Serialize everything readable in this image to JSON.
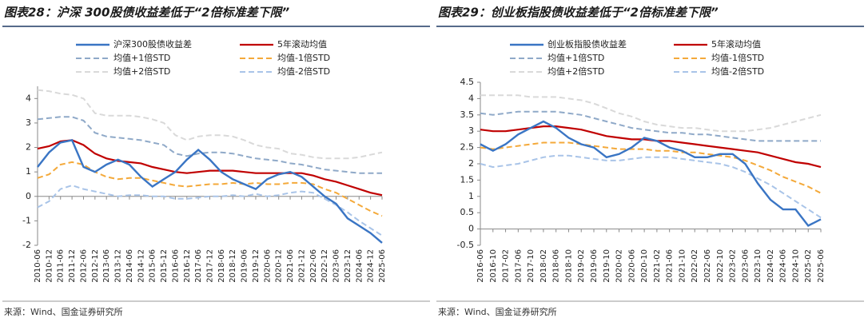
{
  "chart_data": [
    {
      "type": "line",
      "title": "图表28：沪深 300股债收益差低于“2倍标准差下限”",
      "source": "来源：Wind、国金证券研究所",
      "categories": [
        "2010-06",
        "2010-12",
        "2011-06",
        "2011-12",
        "2012-06",
        "2012-12",
        "2013-06",
        "2013-12",
        "2014-06",
        "2014-12",
        "2015-06",
        "2015-12",
        "2016-06",
        "2016-12",
        "2017-06",
        "2017-12",
        "2018-06",
        "2018-12",
        "2019-06",
        "2019-12",
        "2020-06",
        "2020-12",
        "2021-06",
        "2021-12",
        "2022-06",
        "2022-12",
        "2023-06",
        "2023-12",
        "2024-06",
        "2024-12",
        "2025-06"
      ],
      "ylim": [
        -2,
        4.5
      ],
      "yticks": [
        -2,
        -1,
        0,
        1,
        2,
        3,
        4
      ],
      "series": [
        {
          "name": "沪深300股债收益差",
          "color": "#3a75c4",
          "values": [
            1.2,
            1.8,
            2.2,
            2.3,
            1.2,
            1.0,
            1.3,
            1.5,
            1.3,
            0.8,
            0.4,
            0.7,
            1.0,
            1.5,
            1.9,
            1.5,
            1.0,
            0.7,
            0.5,
            0.3,
            0.7,
            0.9,
            1.0,
            0.8,
            0.4,
            0.0,
            -0.3,
            -0.9,
            -1.2,
            -1.5,
            -1.9
          ]
        },
        {
          "name": "5年滚动均值",
          "color": "#c00000",
          "values": [
            1.95,
            2.05,
            2.25,
            2.3,
            2.1,
            1.75,
            1.55,
            1.45,
            1.4,
            1.35,
            1.2,
            1.1,
            1.0,
            0.95,
            1.0,
            1.05,
            1.05,
            1.05,
            1.0,
            0.95,
            0.95,
            0.95,
            0.95,
            0.95,
            0.85,
            0.7,
            0.6,
            0.45,
            0.3,
            0.15,
            0.05
          ]
        },
        {
          "name": "均值+1倍STD",
          "color": "#8fa9c8",
          "values": [
            3.15,
            3.2,
            3.25,
            3.25,
            3.1,
            2.6,
            2.45,
            2.4,
            2.35,
            2.3,
            2.2,
            2.1,
            1.75,
            1.65,
            1.75,
            1.8,
            1.8,
            1.75,
            1.65,
            1.55,
            1.5,
            1.45,
            1.35,
            1.3,
            1.2,
            1.1,
            1.05,
            1.0,
            0.95,
            0.95,
            0.95
          ]
        },
        {
          "name": "均值-1倍STD",
          "color": "#f4a93a",
          "values": [
            0.75,
            0.9,
            1.3,
            1.4,
            1.3,
            1.0,
            0.8,
            0.7,
            0.75,
            0.75,
            0.65,
            0.55,
            0.45,
            0.4,
            0.45,
            0.5,
            0.5,
            0.55,
            0.5,
            0.55,
            0.5,
            0.5,
            0.55,
            0.55,
            0.5,
            0.3,
            0.15,
            -0.1,
            -0.35,
            -0.6,
            -0.8
          ]
        },
        {
          "name": "均值+2倍STD",
          "color": "#d9d9d9",
          "values": [
            4.35,
            4.3,
            4.2,
            4.15,
            4.0,
            3.4,
            3.3,
            3.3,
            3.3,
            3.25,
            3.15,
            3.0,
            2.5,
            2.3,
            2.45,
            2.5,
            2.5,
            2.45,
            2.3,
            2.1,
            2.0,
            1.95,
            1.75,
            1.7,
            1.6,
            1.55,
            1.55,
            1.55,
            1.6,
            1.7,
            1.8
          ]
        },
        {
          "name": "均值-2倍STD",
          "color": "#a9c4e8",
          "values": [
            -0.45,
            -0.2,
            0.3,
            0.45,
            0.3,
            0.2,
            0.1,
            0.0,
            0.05,
            0.05,
            0.0,
            0.0,
            -0.1,
            -0.1,
            -0.05,
            0.0,
            0.0,
            0.05,
            0.0,
            0.1,
            0.0,
            0.05,
            0.15,
            0.2,
            0.15,
            -0.1,
            -0.35,
            -0.65,
            -1.0,
            -1.3,
            -1.6
          ]
        }
      ]
    },
    {
      "type": "line",
      "title": "图表29：创业板指股债收益差低于“2倍标准差下限”",
      "source": "来源：Wind、国金证券研究所",
      "categories": [
        "2016-06",
        "2016-10",
        "2017-02",
        "2017-06",
        "2017-10",
        "2018-02",
        "2018-06",
        "2018-10",
        "2019-02",
        "2019-06",
        "2019-10",
        "2020-02",
        "2020-06",
        "2020-10",
        "2021-02",
        "2021-06",
        "2021-10",
        "2022-02",
        "2022-06",
        "2022-10",
        "2023-02",
        "2023-06",
        "2023-10",
        "2024-02",
        "2024-06",
        "2024-10",
        "2025-02",
        "2025-06"
      ],
      "ylim": [
        -0.5,
        4.5
      ],
      "yticks": [
        -0.5,
        0,
        0.5,
        1,
        1.5,
        2,
        2.5,
        3,
        3.5,
        4,
        4.5
      ],
      "series": [
        {
          "name": "创业板指股债收益差",
          "color": "#3a75c4",
          "values": [
            2.6,
            2.4,
            2.6,
            2.9,
            3.1,
            3.3,
            3.1,
            2.8,
            2.6,
            2.5,
            2.2,
            2.3,
            2.5,
            2.8,
            2.7,
            2.5,
            2.4,
            2.2,
            2.2,
            2.3,
            2.3,
            2.0,
            1.4,
            0.9,
            0.6,
            0.6,
            0.1,
            0.3
          ]
        },
        {
          "name": "5年滚动均值",
          "color": "#c00000",
          "values": [
            3.05,
            3.0,
            3.0,
            3.05,
            3.1,
            3.15,
            3.15,
            3.1,
            3.05,
            2.95,
            2.85,
            2.8,
            2.75,
            2.75,
            2.7,
            2.7,
            2.65,
            2.6,
            2.55,
            2.5,
            2.45,
            2.4,
            2.35,
            2.25,
            2.15,
            2.05,
            2.0,
            1.9
          ]
        },
        {
          "name": "均值+1倍STD",
          "color": "#8fa9c8",
          "values": [
            3.55,
            3.5,
            3.55,
            3.6,
            3.6,
            3.6,
            3.6,
            3.55,
            3.5,
            3.4,
            3.3,
            3.2,
            3.1,
            3.05,
            3.0,
            2.95,
            2.95,
            2.9,
            2.9,
            2.85,
            2.8,
            2.75,
            2.7,
            2.7,
            2.7,
            2.7,
            2.7,
            2.7
          ]
        },
        {
          "name": "均值-1倍STD",
          "color": "#f4a93a",
          "values": [
            2.5,
            2.45,
            2.5,
            2.55,
            2.6,
            2.65,
            2.65,
            2.65,
            2.6,
            2.55,
            2.5,
            2.45,
            2.45,
            2.45,
            2.4,
            2.4,
            2.35,
            2.35,
            2.3,
            2.25,
            2.2,
            2.1,
            1.95,
            1.8,
            1.6,
            1.45,
            1.3,
            1.1
          ]
        },
        {
          "name": "均值+2倍STD",
          "color": "#d9d9d9",
          "values": [
            4.1,
            4.1,
            4.1,
            4.1,
            4.05,
            4.05,
            4.05,
            4.0,
            3.95,
            3.85,
            3.7,
            3.55,
            3.45,
            3.3,
            3.2,
            3.15,
            3.1,
            3.1,
            3.05,
            3.0,
            3.0,
            3.0,
            3.05,
            3.1,
            3.2,
            3.3,
            3.4,
            3.5
          ]
        },
        {
          "name": "均值-2倍STD",
          "color": "#a9c4e8",
          "values": [
            2.0,
            1.9,
            1.95,
            2.0,
            2.1,
            2.2,
            2.25,
            2.25,
            2.2,
            2.15,
            2.1,
            2.1,
            2.15,
            2.2,
            2.2,
            2.2,
            2.15,
            2.1,
            2.05,
            2.0,
            1.9,
            1.75,
            1.55,
            1.35,
            1.1,
            0.85,
            0.6,
            0.35
          ]
        }
      ]
    }
  ]
}
